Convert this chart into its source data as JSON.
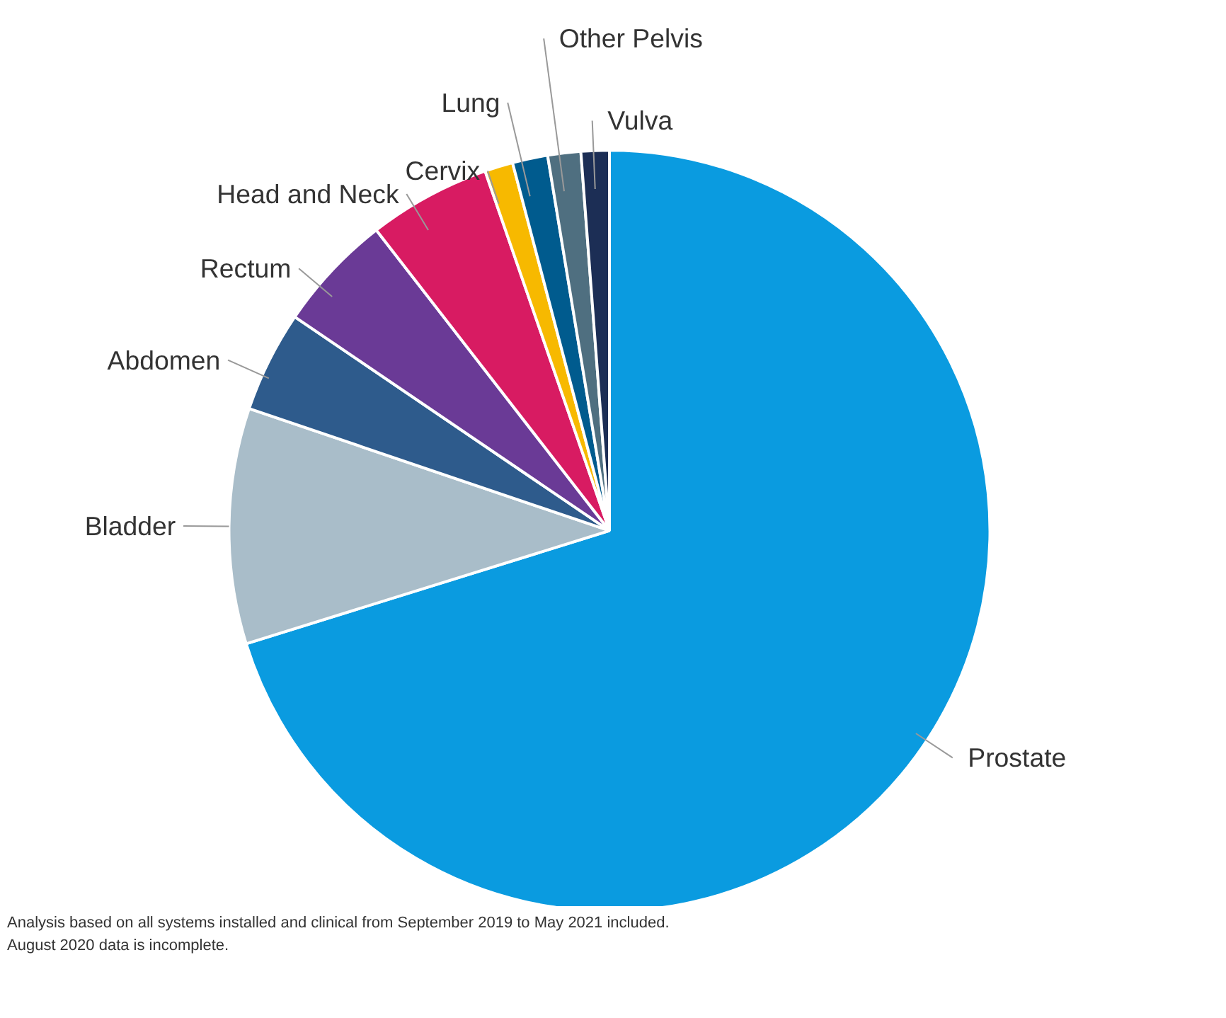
{
  "chart_data": {
    "type": "pie",
    "categories": [
      "Prostate",
      "Bladder",
      "Abdomen",
      "Rectum",
      "Head and Neck",
      "Cervix",
      "Lung",
      "Other Pelvis",
      "Vulva"
    ],
    "values": [
      70.2,
      10,
      4.3,
      5,
      5.2,
      1.2,
      1.5,
      1.4,
      1.2
    ],
    "colors": [
      "#0a9be0",
      "#a9bdc9",
      "#2e5b8c",
      "#6a3a96",
      "#d81b62",
      "#f7b900",
      "#005b8e",
      "#4f6f80",
      "#1c2e55"
    ],
    "annotations": [
      "Analysis based on all systems installed and clinical from September 2019 to May 2021 included. August 2020 data is incomplete."
    ]
  }
}
